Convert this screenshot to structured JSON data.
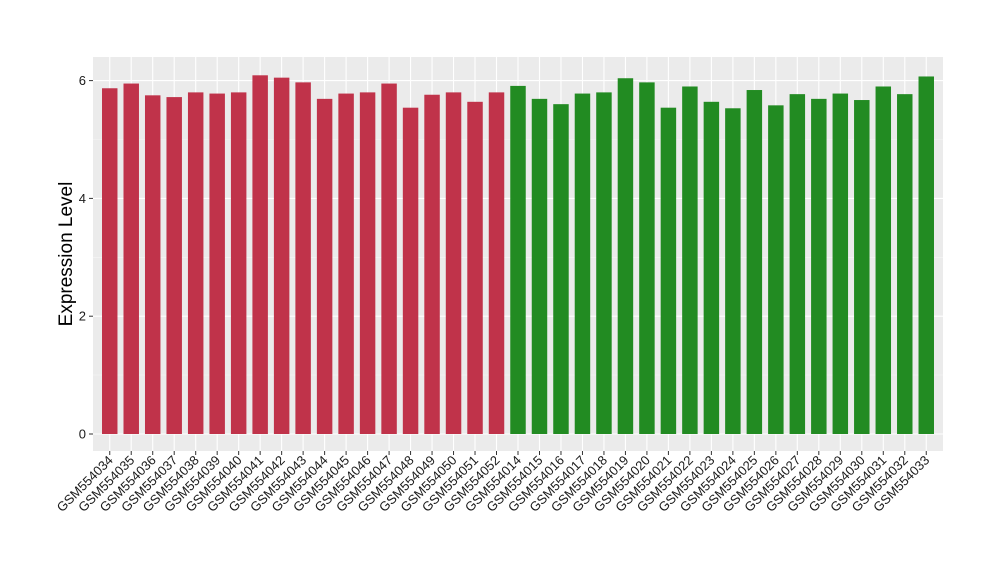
{
  "chart_data": {
    "type": "bar",
    "title": "",
    "xlabel": "",
    "ylabel": "Expression Level",
    "ylim": [
      -0.3,
      6.25
    ],
    "yticks": [
      0,
      2,
      4,
      6
    ],
    "grid": true,
    "legend": "none",
    "panel_background": "#ebebeb",
    "categories": [
      "GSM554034",
      "GSM554035",
      "GSM554036",
      "GSM554037",
      "GSM554038",
      "GSM554039",
      "GSM554040",
      "GSM554041",
      "GSM554042",
      "GSM554043",
      "GSM554044",
      "GSM554045",
      "GSM554046",
      "GSM554047",
      "GSM554048",
      "GSM554049",
      "GSM554050",
      "GSM554051",
      "GSM554052",
      "GSM554014",
      "GSM554015",
      "GSM554016",
      "GSM554017",
      "GSM554018",
      "GSM554019",
      "GSM554020",
      "GSM554021",
      "GSM554022",
      "GSM554023",
      "GSM554024",
      "GSM554025",
      "GSM554026",
      "GSM554027",
      "GSM554028",
      "GSM554029",
      "GSM554030",
      "GSM554031",
      "GSM554032",
      "GSM554033"
    ],
    "values": [
      5.87,
      5.95,
      5.75,
      5.72,
      5.8,
      5.78,
      5.8,
      6.09,
      6.05,
      5.97,
      5.69,
      5.78,
      5.8,
      5.95,
      5.54,
      5.76,
      5.8,
      5.64,
      5.8,
      5.91,
      5.69,
      5.6,
      5.78,
      5.8,
      6.04,
      5.97,
      5.54,
      5.9,
      5.64,
      5.53,
      5.84,
      5.58,
      5.77,
      5.69,
      5.78,
      5.67,
      5.9,
      5.77,
      6.07
    ],
    "colors": [
      "#c0334a",
      "#c0334a",
      "#c0334a",
      "#c0334a",
      "#c0334a",
      "#c0334a",
      "#c0334a",
      "#c0334a",
      "#c0334a",
      "#c0334a",
      "#c0334a",
      "#c0334a",
      "#c0334a",
      "#c0334a",
      "#c0334a",
      "#c0334a",
      "#c0334a",
      "#c0334a",
      "#c0334a",
      "#228b22",
      "#228b22",
      "#228b22",
      "#228b22",
      "#228b22",
      "#228b22",
      "#228b22",
      "#228b22",
      "#228b22",
      "#228b22",
      "#228b22",
      "#228b22",
      "#228b22",
      "#228b22",
      "#228b22",
      "#228b22",
      "#228b22",
      "#228b22",
      "#228b22",
      "#228b22"
    ]
  }
}
